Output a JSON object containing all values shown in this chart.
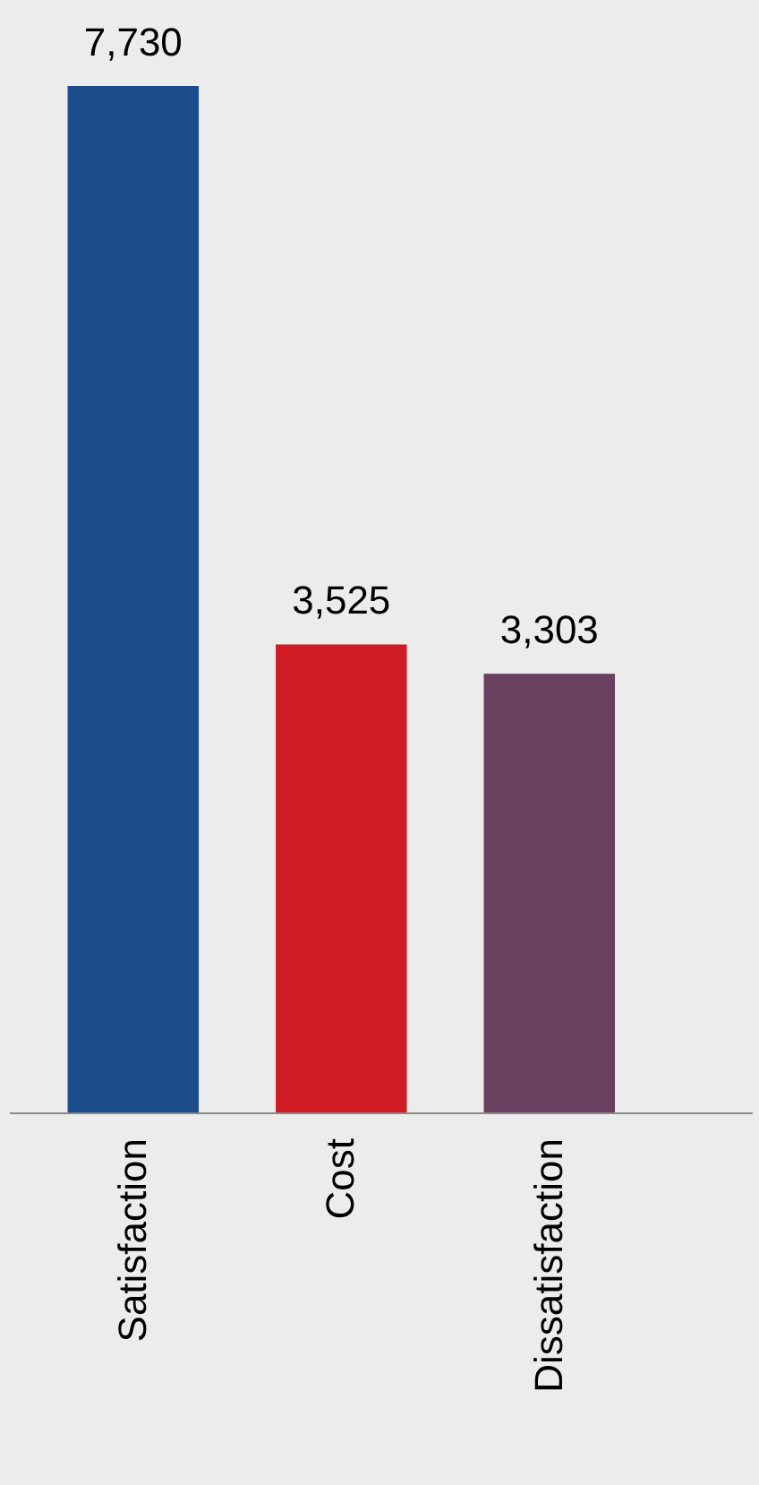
{
  "chart_data": {
    "type": "bar",
    "categories": [
      "Satisfaction",
      "Cost",
      "Dissatisfaction"
    ],
    "values": [
      7730,
      3525,
      3303
    ],
    "colors": [
      "#1b4b8b",
      "#d11c24",
      "#6a3f5f"
    ],
    "value_labels": [
      "7,730",
      "3,525",
      "3,303"
    ],
    "grid": false,
    "legend": false
  }
}
